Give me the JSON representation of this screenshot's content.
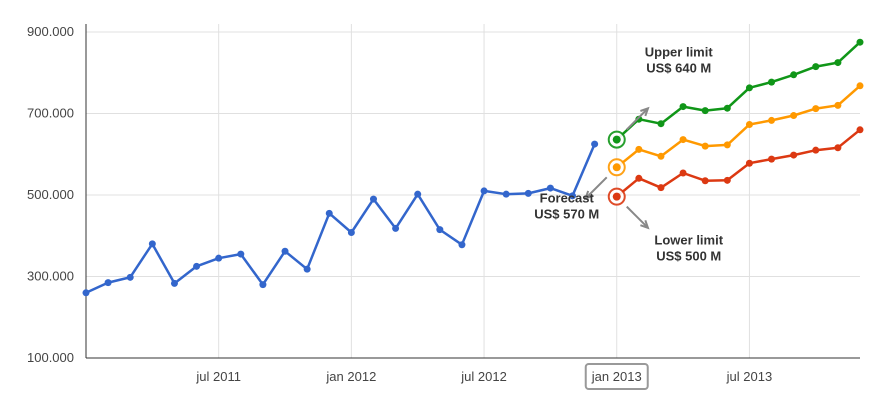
{
  "chart_data": {
    "type": "line",
    "title": "",
    "xlabel": "",
    "ylabel": "",
    "ylim": [
      100000,
      900000
    ],
    "yticks": [
      "100.000",
      "300.000",
      "500.000",
      "700.000",
      "900.000"
    ],
    "yticks_values": [
      100000,
      300000,
      500000,
      700000,
      900000
    ],
    "xticks": [
      "jul 2011",
      "jan 2012",
      "jul 2012",
      "jan 2013",
      "jul 2013"
    ],
    "xticks_values": [
      "2011-07",
      "2012-01",
      "2012-07",
      "2013-01",
      "2013-07"
    ],
    "highlighted_xtick": "jan 2013",
    "x_range": [
      "2011-01",
      "2013-12"
    ],
    "grid": true,
    "legend": "none",
    "series": [
      {
        "color": "#3366cc",
        "x": [
          "2011-01",
          "2011-02",
          "2011-03",
          "2011-04",
          "2011-05",
          "2011-06",
          "2011-07",
          "2011-08",
          "2011-09",
          "2011-10",
          "2011-11",
          "2011-12",
          "2012-01",
          "2012-02",
          "2012-03",
          "2012-04",
          "2012-05",
          "2012-06",
          "2012-07",
          "2012-08",
          "2012-09",
          "2012-10",
          "2012-11",
          "2012-12"
        ],
        "values": [
          260000,
          285000,
          298000,
          380000,
          283000,
          325000,
          345000,
          355000,
          280000,
          362000,
          318000,
          455000,
          408000,
          490000,
          418000,
          502000,
          415000,
          378000,
          510000,
          502000,
          504000,
          517000,
          498000,
          625000
        ]
      },
      {
        "color": "#109618",
        "x": [
          "2013-01",
          "2013-02",
          "2013-03",
          "2013-04",
          "2013-05",
          "2013-06",
          "2013-07",
          "2013-08",
          "2013-09",
          "2013-10",
          "2013-11",
          "2013-12"
        ],
        "values": [
          636000,
          686000,
          675000,
          717000,
          707000,
          713000,
          763000,
          777000,
          795000,
          815000,
          825000,
          875000
        ]
      },
      {
        "color": "#ff9900",
        "x": [
          "2013-01",
          "2013-02",
          "2013-03",
          "2013-04",
          "2013-05",
          "2013-06",
          "2013-07",
          "2013-08",
          "2013-09",
          "2013-10",
          "2013-11",
          "2013-12"
        ],
        "values": [
          568000,
          612000,
          595000,
          636000,
          620000,
          623000,
          673000,
          683000,
          695000,
          712000,
          720000,
          768000
        ]
      },
      {
        "color": "#dc3912",
        "x": [
          "2013-01",
          "2013-02",
          "2013-03",
          "2013-04",
          "2013-05",
          "2013-06",
          "2013-07",
          "2013-08",
          "2013-09",
          "2013-10",
          "2013-11",
          "2013-12"
        ],
        "values": [
          496000,
          541000,
          518000,
          554000,
          535000,
          536000,
          578000,
          588000,
          598000,
          610000,
          616000,
          660000
        ]
      }
    ],
    "annotations": [
      {
        "lines": [
          "Upper limit",
          "US$ 640 M"
        ],
        "target_series": 1,
        "direction": "up-right"
      },
      {
        "lines": [
          "Forecast",
          "US$ 570 M"
        ],
        "target_series": 2,
        "direction": "down-left"
      },
      {
        "lines": [
          "Lower limit",
          "US$ 500 M"
        ],
        "target_series": 3,
        "direction": "down-right"
      }
    ]
  }
}
